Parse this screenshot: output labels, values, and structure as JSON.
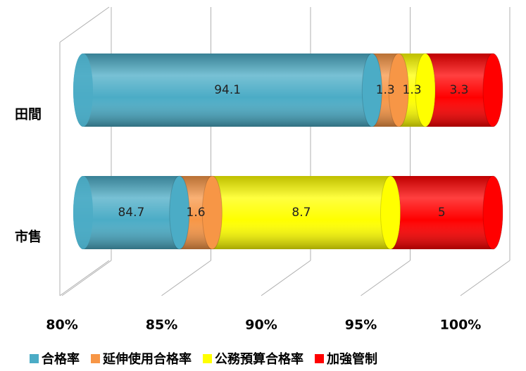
{
  "chart_data": {
    "type": "bar3d_stacked_horizontal",
    "categories": [
      "田間",
      "市售"
    ],
    "series": [
      {
        "name": "合格率",
        "color": "#4bacc6",
        "values": [
          94.1,
          84.7
        ]
      },
      {
        "name": "延伸使用合格率",
        "color": "#f79646",
        "values": [
          1.3,
          1.6
        ]
      },
      {
        "name": "公務預算合格率",
        "color": "#ffff00",
        "values": [
          1.3,
          8.7
        ]
      },
      {
        "name": "加強管制",
        "color": "#ff0000",
        "values": [
          3.3,
          5
        ]
      }
    ],
    "xlim": [
      80,
      100
    ],
    "xticks": [
      {
        "value": 80,
        "label": "80%"
      },
      {
        "value": 85,
        "label": "85%"
      },
      {
        "value": 90,
        "label": "90%"
      },
      {
        "value": 95,
        "label": "95%"
      },
      {
        "value": 100,
        "label": "100%"
      }
    ],
    "grid": true,
    "legend": "bottom"
  }
}
